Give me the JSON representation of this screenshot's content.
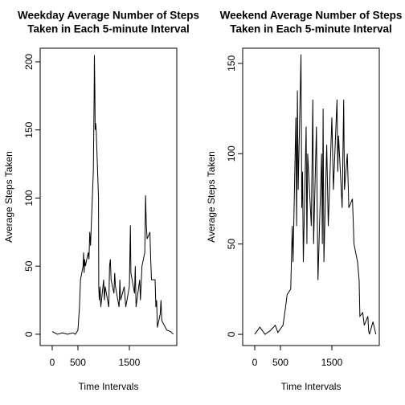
{
  "chart_data": [
    {
      "type": "line",
      "title": [
        "Weekday Average Number of Steps",
        "Taken in Each 5-minute Interval"
      ],
      "x_label": "Time Intervals",
      "y_label": "Average Steps Taken",
      "xlim": [
        -234,
        2422
      ],
      "ylim": [
        -8.3,
        210
      ],
      "xticks": [
        0,
        500,
        1500
      ],
      "yticks": [
        0,
        50,
        100,
        150,
        200
      ],
      "series": [
        {
          "name": "weekday",
          "color": "#000000",
          "x": [
            0,
            100,
            200,
            300,
            400,
            450,
            500,
            530,
            550,
            600,
            610,
            620,
            630,
            645,
            700,
            715,
            730,
            745,
            800,
            815,
            820,
            830,
            835,
            845,
            855,
            900,
            905,
            915,
            930,
            945,
            1000,
            1015,
            1030,
            1100,
            1115,
            1130,
            1145,
            1200,
            1215,
            1230,
            1300,
            1315,
            1330,
            1400,
            1430,
            1500,
            1520,
            1530,
            1600,
            1615,
            1630,
            1700,
            1715,
            1745,
            1800,
            1815,
            1830,
            1845,
            1900,
            1915,
            1930,
            2000,
            2015,
            2030,
            2045,
            2100,
            2115,
            2130,
            2200,
            2230,
            2300,
            2355
          ],
          "values": [
            2,
            0,
            1,
            0,
            1,
            0,
            3,
            20,
            40,
            50,
            60,
            45,
            55,
            50,
            60,
            55,
            75,
            65,
            120,
            175,
            205,
            178,
            150,
            155,
            150,
            100,
            35,
            25,
            35,
            20,
            40,
            25,
            35,
            20,
            50,
            55,
            40,
            30,
            45,
            35,
            20,
            40,
            25,
            35,
            20,
            35,
            80,
            45,
            30,
            50,
            20,
            40,
            25,
            50,
            60,
            102,
            80,
            70,
            75,
            55,
            40,
            40,
            20,
            25,
            5,
            15,
            25,
            10,
            5,
            3,
            2,
            0
          ]
        }
      ]
    },
    {
      "type": "line",
      "title": [
        "Weekend Average Number of Steps",
        "Taken in Each 5-minute Interval"
      ],
      "x_label": "Time Intervals",
      "y_label": "Average Steps Taken",
      "xlim": [
        -234,
        2422
      ],
      "ylim": [
        -6.2,
        158.4
      ],
      "xticks": [
        0,
        500,
        1500
      ],
      "yticks": [
        0,
        50,
        100,
        150
      ],
      "series": [
        {
          "name": "weekend",
          "color": "#000000",
          "x": [
            0,
            100,
            200,
            300,
            400,
            450,
            500,
            550,
            600,
            630,
            700,
            730,
            745,
            800,
            815,
            830,
            845,
            900,
            915,
            930,
            945,
            1000,
            1015,
            1030,
            1100,
            1130,
            1145,
            1200,
            1215,
            1230,
            1300,
            1315,
            1330,
            1345,
            1400,
            1430,
            1500,
            1530,
            1600,
            1615,
            1630,
            1700,
            1730,
            1745,
            1800,
            1830,
            1900,
            1930,
            2000,
            2030,
            2045,
            2100,
            2130,
            2200,
            2215,
            2230,
            2300,
            2355
          ],
          "values": [
            0,
            4,
            0,
            2,
            5,
            1,
            3,
            5,
            15,
            22,
            25,
            60,
            40,
            120,
            60,
            135,
            80,
            155,
            70,
            90,
            40,
            115,
            50,
            100,
            60,
            130,
            50,
            115,
            70,
            30,
            100,
            50,
            125,
            40,
            105,
            60,
            120,
            80,
            130,
            90,
            110,
            70,
            130,
            80,
            100,
            70,
            75,
            50,
            40,
            30,
            10,
            12,
            5,
            10,
            2,
            0,
            7,
            0
          ]
        }
      ]
    }
  ]
}
